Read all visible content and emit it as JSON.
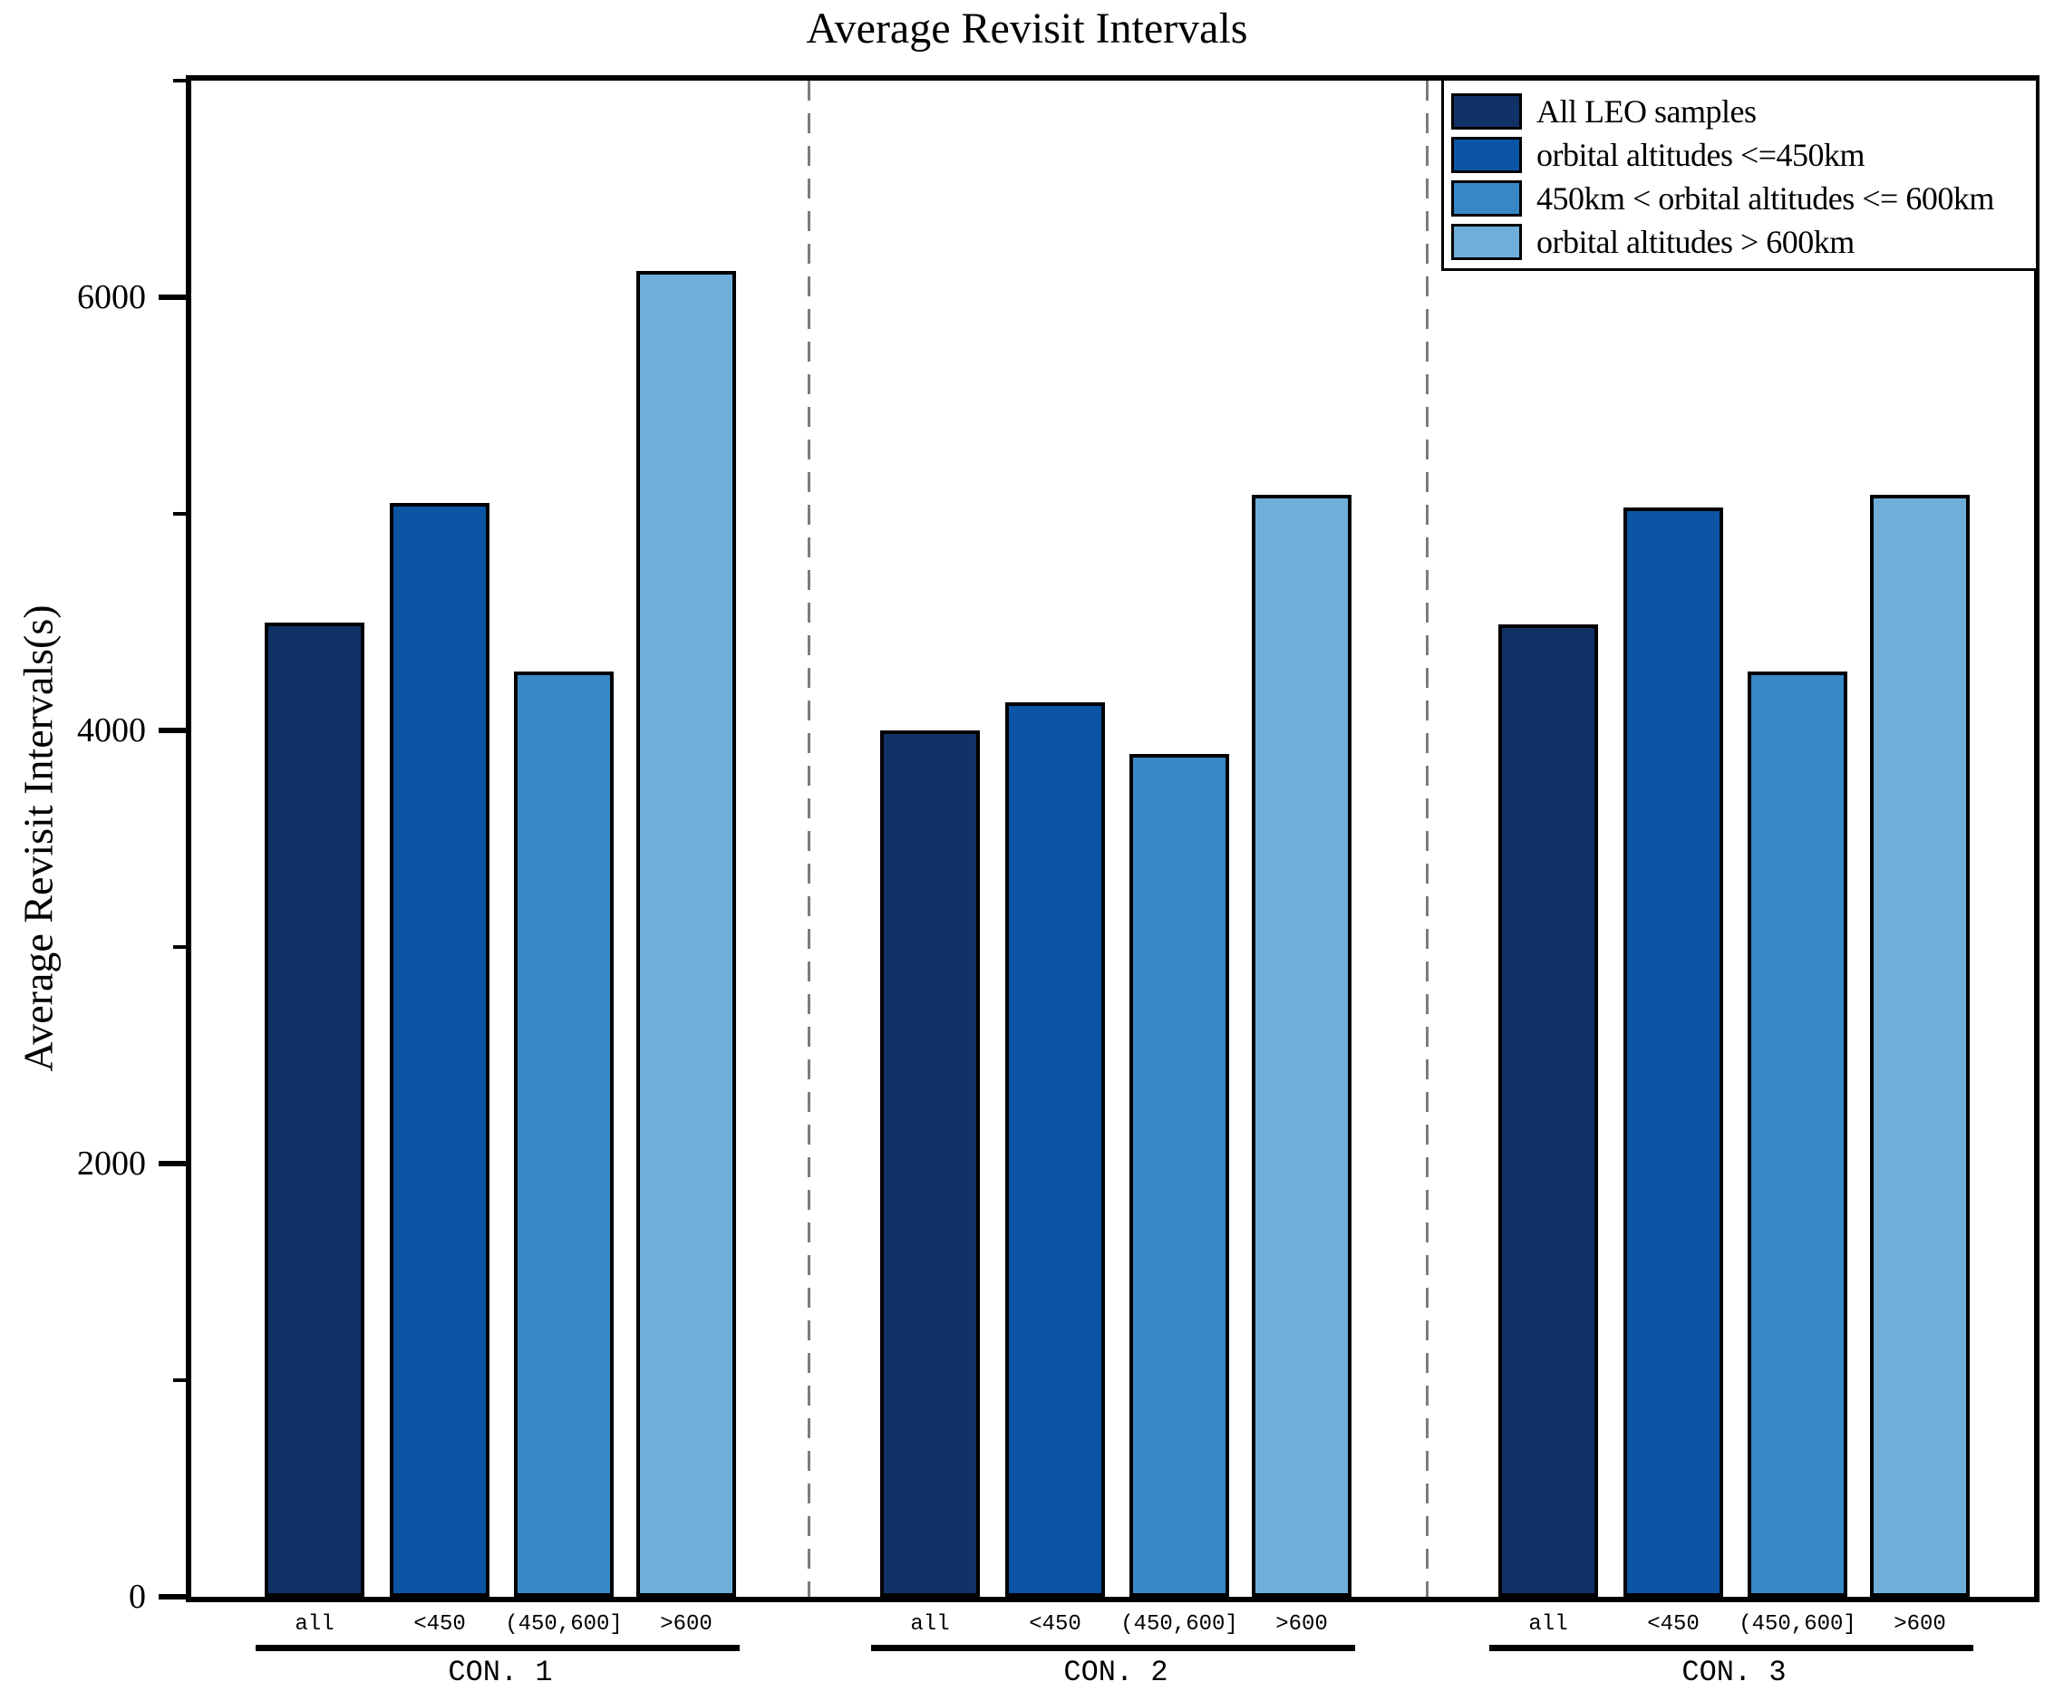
{
  "title": "Average Revisit Intervals",
  "ylabel": "Average Revisit Intervals(s)",
  "legend": {
    "items": [
      {
        "label": "All LEO samples",
        "color": "#113266"
      },
      {
        "label": "orbital altitudes <=450km",
        "color": "#0c55a5"
      },
      {
        "label": "450km < orbital altitudes <= 600km",
        "color": "#3888c6"
      },
      {
        "label": "orbital altitudes > 600km",
        "color": "#70aeda"
      }
    ]
  },
  "chart_data": {
    "type": "bar",
    "title": "Average Revisit Intervals",
    "xlabel": "",
    "ylabel": "Average Revisit Intervals(s)",
    "ylim": [
      0,
      7000
    ],
    "yticks_major": [
      0,
      2000,
      4000,
      6000
    ],
    "yticks_minor": [
      1000,
      3000,
      5000,
      7000
    ],
    "grid": false,
    "legend_position": "upper right",
    "separator_style": "dashed gray vertical lines between groups",
    "separator_color": "#7c7c7c",
    "groups": [
      "CON. 1",
      "CON. 2",
      "CON. 3"
    ],
    "bar_labels": [
      "all",
      "<450",
      "(450,600]",
      ">600"
    ],
    "series": [
      {
        "name": "All LEO samples",
        "color": "#113266",
        "values": [
          4500,
          4000,
          4490
        ]
      },
      {
        "name": "orbital altitudes <=450km",
        "color": "#0c55a5",
        "values": [
          5050,
          4130,
          5030
        ]
      },
      {
        "name": "450km < orbital altitudes <= 600km",
        "color": "#3888c6",
        "values": [
          4270,
          3890,
          4270
        ]
      },
      {
        "name": "orbital altitudes > 600km",
        "color": "#70aeda",
        "values": [
          6120,
          5090,
          5090
        ]
      }
    ]
  }
}
